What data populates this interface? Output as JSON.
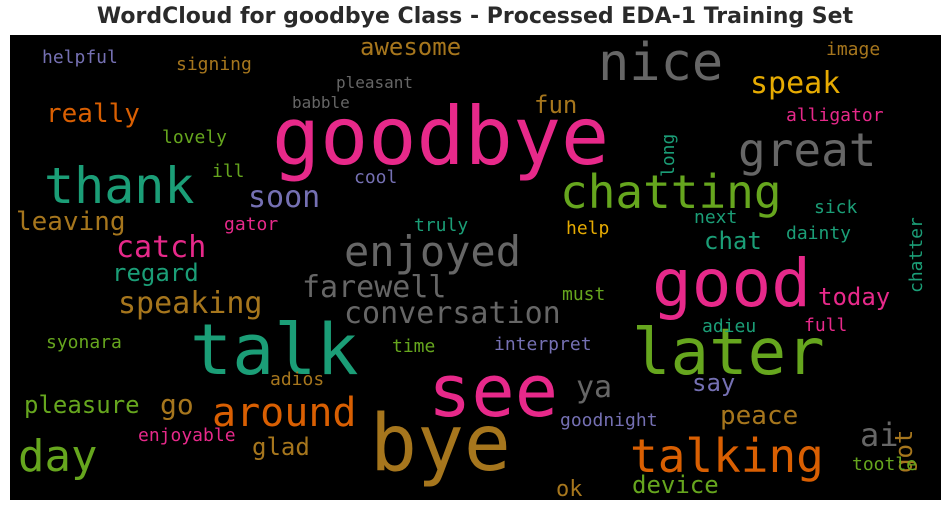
{
  "title": "WordCloud for goodbye Class - Processed EDA-1 Training Set",
  "colors": {
    "pink": "#e7298a",
    "green": "#1b9e77",
    "orange": "#d95f02",
    "lime": "#66a61e",
    "gray": "#666666",
    "brown": "#a6761d",
    "gold": "#e6ab02",
    "purple": "#7570b3"
  },
  "words": [
    {
      "text": "goodbye"
    },
    {
      "text": "bye"
    },
    {
      "text": "see"
    },
    {
      "text": "talk"
    },
    {
      "text": "good"
    },
    {
      "text": "later"
    },
    {
      "text": "nice"
    },
    {
      "text": "thank"
    },
    {
      "text": "chatting"
    },
    {
      "text": "great"
    },
    {
      "text": "talking"
    },
    {
      "text": "enjoyed"
    },
    {
      "text": "around"
    },
    {
      "text": "day"
    },
    {
      "text": "conversation"
    },
    {
      "text": "farewell"
    },
    {
      "text": "speaking"
    },
    {
      "text": "speak"
    },
    {
      "text": "catch"
    },
    {
      "text": "soon"
    },
    {
      "text": "pleasure"
    },
    {
      "text": "leaving"
    },
    {
      "text": "really"
    },
    {
      "text": "awesome"
    },
    {
      "text": "regard"
    },
    {
      "text": "ya"
    },
    {
      "text": "ai"
    },
    {
      "text": "go"
    },
    {
      "text": "fun"
    },
    {
      "text": "peace"
    },
    {
      "text": "today"
    },
    {
      "text": "glad"
    },
    {
      "text": "chat"
    },
    {
      "text": "device"
    },
    {
      "text": "got"
    },
    {
      "text": "say"
    },
    {
      "text": "ok"
    },
    {
      "text": "pleasant"
    },
    {
      "text": "babble"
    },
    {
      "text": "signing"
    },
    {
      "text": "helpful"
    },
    {
      "text": "image"
    },
    {
      "text": "long"
    },
    {
      "text": "alligator"
    },
    {
      "text": "lovely"
    },
    {
      "text": "ill"
    },
    {
      "text": "cool"
    },
    {
      "text": "next"
    },
    {
      "text": "sick"
    },
    {
      "text": "chatter"
    },
    {
      "text": "gator"
    },
    {
      "text": "truly"
    },
    {
      "text": "help"
    },
    {
      "text": "dainty"
    },
    {
      "text": "must"
    },
    {
      "text": "adieu"
    },
    {
      "text": "full"
    },
    {
      "text": "syonara"
    },
    {
      "text": "time"
    },
    {
      "text": "interpret"
    },
    {
      "text": "adios"
    },
    {
      "text": "goodnight"
    },
    {
      "text": "enjoyable"
    },
    {
      "text": "tootle"
    }
  ]
}
